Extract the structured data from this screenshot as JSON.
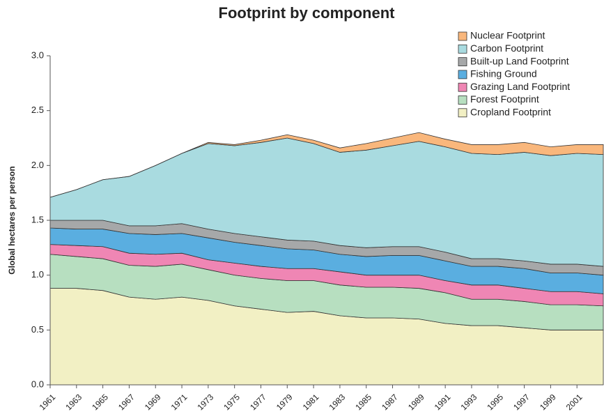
{
  "chart_data": {
    "type": "stacked_area",
    "title": "Footprint by component",
    "y_label": "Global hectares per person",
    "x": [
      1961,
      1963,
      1965,
      1967,
      1969,
      1971,
      1973,
      1975,
      1977,
      1979,
      1981,
      1983,
      1985,
      1987,
      1989,
      1991,
      1993,
      1995,
      1997,
      1999,
      2001,
      2003
    ],
    "xlim": [
      1961,
      2003
    ],
    "xticks": [
      1961,
      1963,
      1965,
      1967,
      1969,
      1971,
      1973,
      1975,
      1977,
      1979,
      1981,
      1983,
      1985,
      1987,
      1989,
      1991,
      1993,
      1995,
      1997,
      1999,
      2001
    ],
    "ylim": [
      0,
      3
    ],
    "yticks": [
      {
        "value": 0,
        "label": "0.0"
      },
      0.5,
      {
        "value": 1,
        "label": "1.0"
      },
      1.5,
      {
        "value": 2,
        "label": "2.0"
      },
      2.5,
      {
        "value": 3,
        "label": "3.0"
      }
    ],
    "grid": false,
    "legend": "upper right",
    "series": [
      {
        "name": "Cropland Footprint",
        "color": "#f2f0c4",
        "values": [
          0.88,
          0.88,
          0.86,
          0.8,
          0.78,
          0.8,
          0.77,
          0.72,
          0.69,
          0.66,
          0.67,
          0.63,
          0.61,
          0.61,
          0.6,
          0.56,
          0.54,
          0.54,
          0.52,
          0.5,
          0.5,
          0.5
        ]
      },
      {
        "name": "Forest Footprint",
        "color": "#b7dfc0",
        "values": [
          0.31,
          0.29,
          0.29,
          0.29,
          0.3,
          0.3,
          0.28,
          0.28,
          0.28,
          0.29,
          0.28,
          0.28,
          0.28,
          0.28,
          0.28,
          0.28,
          0.24,
          0.24,
          0.24,
          0.23,
          0.23,
          0.22
        ]
      },
      {
        "name": "Grazing Land Footprint",
        "color": "#ef86b4",
        "values": [
          0.09,
          0.1,
          0.11,
          0.11,
          0.11,
          0.1,
          0.09,
          0.11,
          0.11,
          0.11,
          0.11,
          0.12,
          0.11,
          0.11,
          0.12,
          0.11,
          0.13,
          0.13,
          0.12,
          0.12,
          0.12,
          0.11
        ]
      },
      {
        "name": "Fishing Ground",
        "color": "#5aaee0",
        "values": [
          0.15,
          0.15,
          0.16,
          0.18,
          0.18,
          0.18,
          0.2,
          0.19,
          0.19,
          0.18,
          0.17,
          0.16,
          0.17,
          0.18,
          0.18,
          0.18,
          0.17,
          0.17,
          0.18,
          0.17,
          0.17,
          0.17
        ]
      },
      {
        "name": "Built-up Land Footprint",
        "color": "#a6a8a9",
        "values": [
          0.07,
          0.08,
          0.08,
          0.07,
          0.08,
          0.09,
          0.08,
          0.08,
          0.08,
          0.08,
          0.08,
          0.08,
          0.08,
          0.08,
          0.08,
          0.08,
          0.07,
          0.07,
          0.07,
          0.08,
          0.08,
          0.08
        ]
      },
      {
        "name": "Carbon Footprint",
        "color": "#a9dbe0",
        "values": [
          0.21,
          0.28,
          0.37,
          0.45,
          0.55,
          0.64,
          0.78,
          0.8,
          0.86,
          0.93,
          0.89,
          0.85,
          0.89,
          0.92,
          0.96,
          0.96,
          0.96,
          0.95,
          0.99,
          0.99,
          1.01,
          1.02
        ]
      },
      {
        "name": "Nuclear Footprint",
        "color": "#f9b77c",
        "values": [
          0,
          0,
          0,
          0,
          0,
          0,
          0.01,
          0.01,
          0.02,
          0.03,
          0.03,
          0.04,
          0.06,
          0.07,
          0.08,
          0.07,
          0.08,
          0.09,
          0.09,
          0.08,
          0.08,
          0.09
        ]
      }
    ]
  }
}
